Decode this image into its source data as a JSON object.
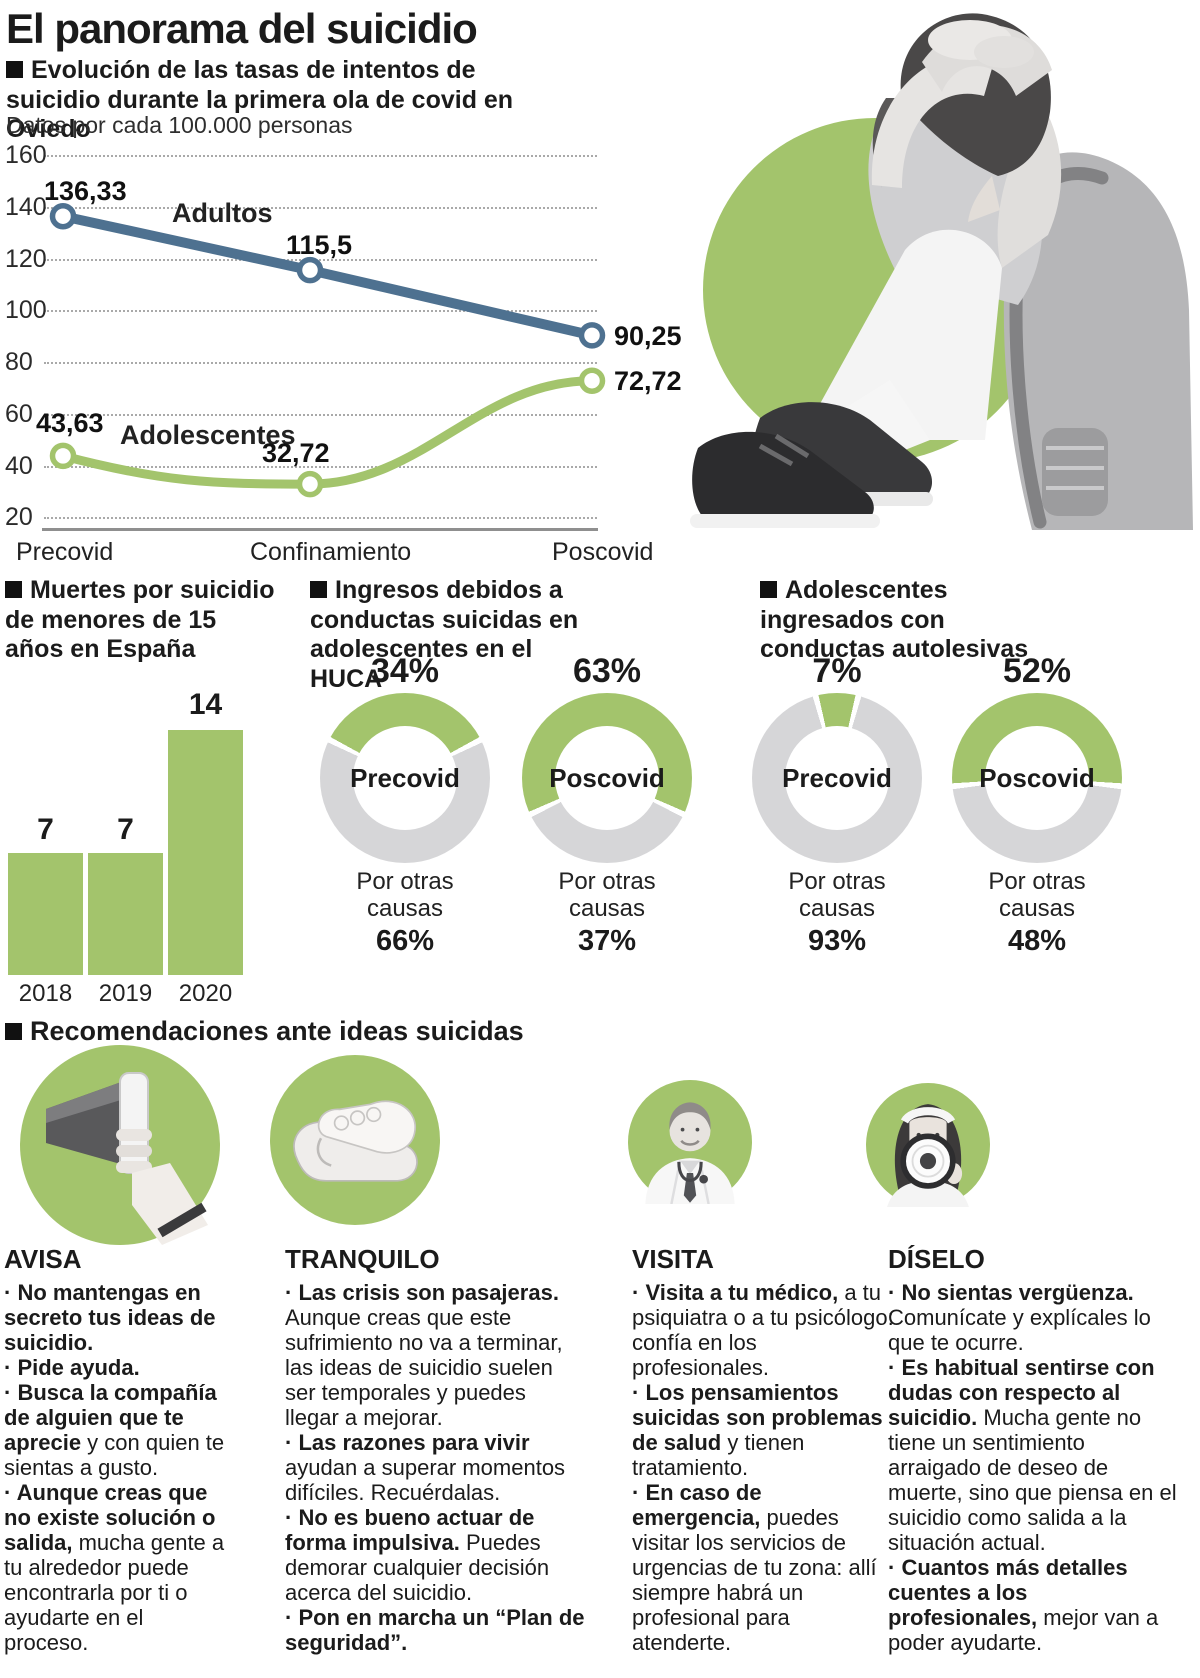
{
  "colors": {
    "green": "#a3c46c",
    "blue": "#4e7190",
    "donut_gray": "#d6d6d8",
    "text": "#1b1b1b"
  },
  "header": {
    "title": "El panorama del suicidio",
    "subtitle": "Evolución de las tasas de intentos de suicidio durante la primera ola de covid en Oviedo",
    "note": "Datos por cada 100.000 personas"
  },
  "icons": {
    "photo": "depressed-teen-photo",
    "column_icons": [
      "megaphone-icon",
      "clasped-hands-icon",
      "doctor-icon",
      "woman-megaphone-icon"
    ]
  },
  "chart_data": [
    {
      "type": "line",
      "title": "Evolución de las tasas de intentos de suicidio durante la primera ola de covid en Oviedo",
      "ylabel": "Datos por cada 100.000 personas",
      "x": [
        "Precovid",
        "Confinamiento",
        "Poscovid"
      ],
      "yticks": [
        "160",
        "140",
        "120",
        "100",
        "80",
        "60",
        "40",
        "20"
      ],
      "ylim": [
        20,
        160
      ],
      "grid": true,
      "series": [
        {
          "name": "Adultos",
          "color": "#4e7190",
          "values": [
            136.33,
            115.5,
            90.25
          ],
          "value_labels": [
            "136,33",
            "115,5",
            "90,25"
          ]
        },
        {
          "name": "Adolescentes",
          "color": "#a3c46c",
          "values": [
            43.63,
            32.72,
            72.72
          ],
          "value_labels": [
            "43,63",
            "32,72",
            "72,72"
          ]
        }
      ]
    },
    {
      "type": "bar",
      "title": "Muertes por suicidio de menores de 15 años en España",
      "categories": [
        "2018",
        "2019",
        "2020"
      ],
      "values": [
        7,
        7,
        14
      ],
      "value_labels": [
        "7",
        "7",
        "14"
      ],
      "ylim": [
        0,
        14
      ]
    },
    {
      "type": "pie",
      "title": "Ingresos debidos a conductas suicidas en adolescentes en el HUCA",
      "donuts": [
        {
          "center_label": "Precovid",
          "pct": 34,
          "pct_label": "34%",
          "other_label": "Por otras causas",
          "other_pct_label": "66%"
        },
        {
          "center_label": "Poscovid",
          "pct": 63,
          "pct_label": "63%",
          "other_label": "Por otras causas",
          "other_pct_label": "37%"
        }
      ]
    },
    {
      "type": "pie",
      "title": "Adolescentes ingresados con conductas autolesivas",
      "donuts": [
        {
          "center_label": "Precovid",
          "pct": 7,
          "pct_label": "7%",
          "other_label": "Por otras causas",
          "other_pct_label": "93%"
        },
        {
          "center_label": "Poscovid",
          "pct": 52,
          "pct_label": "52%",
          "other_label": "Por otras causas",
          "other_pct_label": "48%"
        }
      ]
    }
  ],
  "recommendations": {
    "title": "Recomendaciones ante ideas suicidas",
    "columns": [
      {
        "heading": "AVISA",
        "icon": "megaphone-icon",
        "bullets": [
          {
            "b": "· No mantengas en secreto tus ideas de suicidio.",
            "r": ""
          },
          {
            "b": "· Pide ayuda.",
            "r": ""
          },
          {
            "b": "· Busca la compañía de alguien que te aprecie",
            "r": " y con quien te sientas a gusto."
          },
          {
            "b": "· Aunque creas que no existe solución o salida,",
            "r": " mucha gente a tu alrededor puede encontrarla por ti o ayudarte en el proceso."
          }
        ]
      },
      {
        "heading": "TRANQUILO",
        "icon": "clasped-hands-icon",
        "bullets": [
          {
            "b": "· Las crisis son pasajeras.",
            "r": " Aunque creas que este sufrimiento no va a terminar, las ideas de suicidio suelen ser temporales y puedes llegar a mejorar."
          },
          {
            "b": "· Las razones para vivir",
            "r": " ayudan a superar momentos difíciles. Recuérdalas."
          },
          {
            "b": "· No es bueno actuar de forma impulsiva.",
            "r": " Puedes demorar cualquier decisión acerca del suicidio."
          },
          {
            "b": "· Pon en marcha un “Plan de seguridad”.",
            "r": ""
          }
        ]
      },
      {
        "heading": "VISITA",
        "icon": "doctor-icon",
        "bullets": [
          {
            "b": "· Visita a tu médico,",
            "r": " a tu psiquiatra o a tu psicólogo: confía en los profesionales."
          },
          {
            "b": "· Los pensamientos suicidas son problemas de salud",
            "r": " y tienen tratamiento."
          },
          {
            "b": "· En caso de emergencia,",
            "r": " puedes visitar los servicios de urgencias de tu zona: allí siempre habrá un profesional para atenderte."
          }
        ]
      },
      {
        "heading": "DÍSELO",
        "icon": "woman-megaphone-icon",
        "bullets": [
          {
            "b": "· No sientas vergüenza.",
            "r": " Comunícate y explícales lo que te ocurre."
          },
          {
            "b": "· Es habitual sentirse con dudas con respecto al suicidio.",
            "r": " Mucha gente no tiene un sentimiento arraigado de deseo de muerte, sino que piensa en el suicidio como salida a la situación actual."
          },
          {
            "b": "· Cuantos más detalles cuentes a los profesionales,",
            "r": " mejor van a poder ayudarte."
          }
        ]
      }
    ]
  }
}
